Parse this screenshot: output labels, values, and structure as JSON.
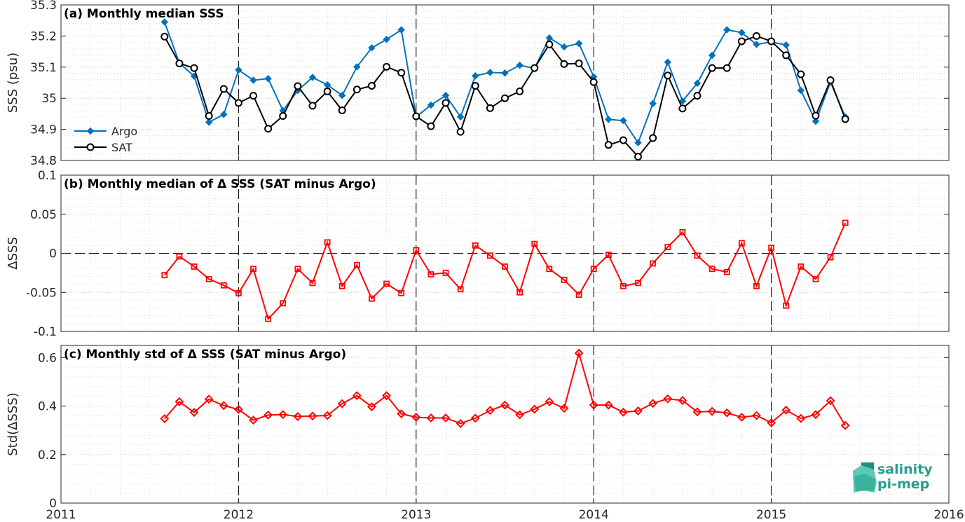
{
  "colors": {
    "argo": "#0072BD",
    "sat": "#000000",
    "delta": "#FF0000",
    "grid": "#d9d9d9",
    "logo": "#2a9d8f"
  },
  "logo": {
    "line1": "salinity",
    "line2": "pi-mep"
  },
  "x_axis": {
    "min": 2011,
    "max": 2016,
    "ticks": [
      2011,
      2012,
      2013,
      2014,
      2015,
      2016
    ],
    "tick_labels": [
      "2011",
      "2012",
      "2013",
      "2014",
      "2015",
      "2016"
    ],
    "dashed_years": [
      2012,
      2013,
      2014,
      2015
    ]
  },
  "chart_data": [
    {
      "type": "line",
      "title": "(a) Monthly median SSS",
      "ylabel": "SSS (psu)",
      "ylim": [
        34.8,
        35.3
      ],
      "yticks": [
        34.8,
        34.9,
        35,
        35.1,
        35.2,
        35.3
      ],
      "ytick_labels": [
        "34.8",
        "34.9",
        "35",
        "35.1",
        "35.2",
        "35.3"
      ],
      "legend": {
        "position": "bottom-left"
      },
      "grid": true,
      "x_start": "2011-08",
      "series": [
        {
          "name": "Argo",
          "marker": "diamond",
          "color": "#0072BD",
          "values": [
            35.245,
            35.113,
            35.071,
            34.923,
            34.948,
            35.091,
            35.058,
            35.063,
            34.96,
            35.025,
            35.067,
            35.043,
            35.009,
            35.101,
            35.162,
            35.189,
            35.22,
            34.94,
            34.978,
            35.009,
            34.94,
            35.072,
            35.083,
            35.081,
            35.106,
            35.096,
            35.194,
            35.165,
            35.176,
            35.069,
            34.932,
            34.928,
            34.857,
            34.983,
            35.116,
            34.991,
            35.048,
            35.138,
            35.22,
            35.211,
            35.173,
            35.181,
            35.171,
            35.025,
            34.926,
            35.052,
            34.94
          ]
        },
        {
          "name": "SAT",
          "marker": "circle",
          "color": "#000000",
          "values": [
            35.198,
            35.112,
            35.097,
            34.943,
            35.03,
            34.985,
            35.008,
            34.902,
            34.943,
            35.039,
            34.976,
            35.022,
            34.961,
            35.028,
            35.04,
            35.101,
            35.082,
            34.942,
            34.91,
            34.985,
            34.892,
            35.04,
            34.968,
            35.0,
            35.022,
            35.097,
            35.173,
            35.11,
            35.112,
            35.052,
            34.85,
            34.865,
            34.812,
            34.872,
            35.073,
            34.967,
            35.008,
            35.097,
            35.097,
            35.183,
            35.2,
            35.183,
            35.138,
            35.077,
            34.944,
            35.058,
            34.933
          ]
        }
      ]
    },
    {
      "type": "line",
      "title": "(b) Monthly median of Δ SSS (SAT minus Argo)",
      "ylabel": "ΔSSS",
      "ylim": [
        -0.1,
        0.1
      ],
      "yticks": [
        -0.1,
        -0.05,
        0,
        0.05,
        0.1
      ],
      "ytick_labels": [
        "-0.1",
        "-0.05",
        "0",
        "0.05",
        "0.1"
      ],
      "grid": true,
      "zero_line": true,
      "x_start": "2011-08",
      "series": [
        {
          "marker": "square",
          "color": "#FF0000",
          "values": [
            -0.028,
            -0.004,
            -0.017,
            -0.033,
            -0.041,
            -0.051,
            -0.02,
            -0.084,
            -0.064,
            -0.02,
            -0.038,
            0.014,
            -0.042,
            -0.015,
            -0.058,
            -0.039,
            -0.051,
            0.004,
            -0.027,
            -0.025,
            -0.046,
            0.01,
            -0.003,
            -0.017,
            -0.05,
            0.012,
            -0.02,
            -0.034,
            -0.053,
            -0.02,
            -0.002,
            -0.042,
            -0.038,
            -0.013,
            0.008,
            0.027,
            -0.003,
            -0.02,
            -0.024,
            0.013,
            -0.042,
            0.007,
            -0.067,
            -0.017,
            -0.033,
            -0.005,
            0.039
          ]
        }
      ]
    },
    {
      "type": "line",
      "title": "(c) Monthly std of Δ SSS (SAT minus Argo)",
      "ylabel": "Std(ΔSSS)",
      "ylim": [
        0,
        0.65
      ],
      "yticks": [
        0,
        0.2,
        0.4,
        0.6
      ],
      "ytick_labels": [
        "0",
        "0.2",
        "0.4",
        "0.6"
      ],
      "grid": true,
      "x_start": "2011-08",
      "series": [
        {
          "marker": "diamond",
          "color": "#FF0000",
          "values": [
            0.348,
            0.418,
            0.374,
            0.428,
            0.402,
            0.386,
            0.342,
            0.363,
            0.365,
            0.357,
            0.359,
            0.361,
            0.41,
            0.443,
            0.397,
            0.443,
            0.368,
            0.354,
            0.351,
            0.351,
            0.328,
            0.35,
            0.382,
            0.404,
            0.364,
            0.387,
            0.418,
            0.391,
            0.618,
            0.404,
            0.404,
            0.375,
            0.38,
            0.411,
            0.43,
            0.423,
            0.376,
            0.378,
            0.372,
            0.354,
            0.361,
            0.331,
            0.383,
            0.349,
            0.365,
            0.422,
            0.32
          ]
        }
      ]
    }
  ]
}
